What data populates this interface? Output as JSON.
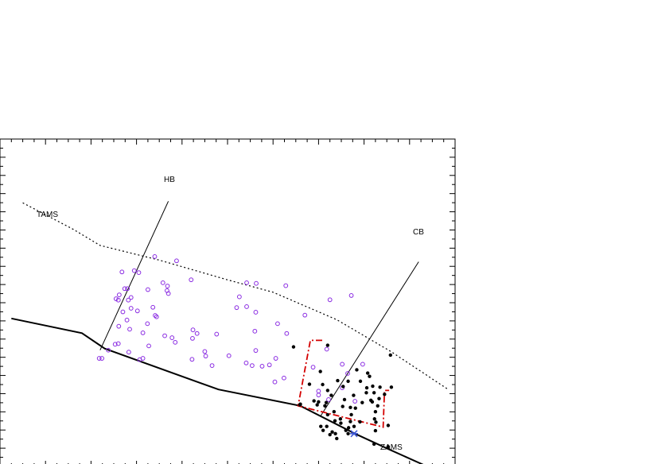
{
  "chart_data": {
    "type": "scatter",
    "title": "",
    "xlabel": "",
    "ylabel": "",
    "xlim": [
      0,
      10
    ],
    "ylim": [
      0,
      10
    ],
    "grid": false,
    "annotations": {
      "tams": "TAMS",
      "zams": "ZAMS",
      "hb": "HB",
      "cb": "CB"
    },
    "colors": {
      "open_points": "#8a2be2",
      "filled_points": "#000000",
      "box": "#d40000",
      "star": "#3b55d6",
      "lines": "#000000"
    },
    "series": [
      {
        "style": "open-circle",
        "points": [
          [
            3.4,
            6.41
          ],
          [
            3.88,
            6.28
          ],
          [
            2.68,
            5.94
          ],
          [
            2.95,
            5.98
          ],
          [
            3.05,
            5.92
          ],
          [
            3.58,
            5.61
          ],
          [
            3.68,
            5.51
          ],
          [
            4.2,
            5.7
          ],
          [
            3.7,
            5.28
          ],
          [
            2.55,
            5.12
          ],
          [
            2.62,
            5.24
          ],
          [
            2.74,
            5.43
          ],
          [
            2.8,
            5.43
          ],
          [
            2.88,
            5.16
          ],
          [
            3.25,
            5.4
          ],
          [
            3.67,
            5.37
          ],
          [
            5.26,
            5.18
          ],
          [
            5.42,
            5.61
          ],
          [
            5.42,
            4.88
          ],
          [
            5.63,
            5.59
          ],
          [
            6.28,
            5.52
          ],
          [
            7.25,
            5.09
          ],
          [
            7.72,
            5.22
          ],
          [
            2.6,
            5.08
          ],
          [
            2.82,
            5.08
          ],
          [
            2.88,
            4.83
          ],
          [
            3.02,
            4.75
          ],
          [
            3.36,
            4.86
          ],
          [
            3.41,
            4.61
          ],
          [
            3.44,
            4.57
          ],
          [
            2.7,
            4.72
          ],
          [
            2.79,
            4.47
          ],
          [
            5.2,
            4.85
          ],
          [
            5.62,
            4.71
          ],
          [
            6.1,
            4.36
          ],
          [
            6.7,
            4.62
          ],
          [
            2.61,
            4.28
          ],
          [
            2.85,
            4.19
          ],
          [
            3.24,
            4.36
          ],
          [
            3.14,
            4.08
          ],
          [
            3.62,
            3.99
          ],
          [
            3.78,
            3.93
          ],
          [
            4.24,
            4.17
          ],
          [
            4.33,
            4.06
          ],
          [
            4.23,
            3.91
          ],
          [
            4.76,
            4.04
          ],
          [
            5.6,
            4.13
          ],
          [
            6.3,
            4.06
          ],
          [
            2.38,
            3.55
          ],
          [
            2.53,
            3.73
          ],
          [
            2.6,
            3.75
          ],
          [
            2.18,
            3.3
          ],
          [
            2.24,
            3.3
          ],
          [
            2.83,
            3.49
          ],
          [
            3.27,
            3.68
          ],
          [
            3.07,
            3.26
          ],
          [
            3.14,
            3.3
          ],
          [
            3.85,
            3.79
          ],
          [
            4.5,
            3.51
          ],
          [
            4.22,
            3.27
          ],
          [
            4.52,
            3.37
          ],
          [
            4.66,
            3.08
          ],
          [
            5.03,
            3.38
          ],
          [
            5.62,
            3.54
          ],
          [
            5.41,
            3.16
          ],
          [
            5.54,
            3.08
          ],
          [
            5.76,
            3.06
          ],
          [
            5.92,
            3.1
          ],
          [
            6.06,
            3.3
          ],
          [
            6.04,
            2.58
          ],
          [
            6.24,
            2.7
          ],
          [
            6.88,
            3.03
          ],
          [
            7.18,
            3.58
          ],
          [
            7.64,
            2.84
          ],
          [
            7.52,
            3.12
          ],
          [
            7.97,
            3.12
          ],
          [
            7.0,
            2.3
          ],
          [
            7.22,
            2.04
          ],
          [
            7.52,
            2.4
          ],
          [
            7.8,
            1.99
          ],
          [
            7.0,
            2.18
          ]
        ]
      },
      {
        "style": "filled-circle",
        "points": [
          [
            6.45,
            3.65
          ],
          [
            7.2,
            3.7
          ],
          [
            8.58,
            3.4
          ],
          [
            7.04,
            2.9
          ],
          [
            7.84,
            2.95
          ],
          [
            7.92,
            2.6
          ],
          [
            8.08,
            2.85
          ],
          [
            8.12,
            2.75
          ],
          [
            7.65,
            2.6
          ],
          [
            8.06,
            2.4
          ],
          [
            8.19,
            2.45
          ],
          [
            8.05,
            2.25
          ],
          [
            8.22,
            2.25
          ],
          [
            6.8,
            2.51
          ],
          [
            7.09,
            2.5
          ],
          [
            7.2,
            2.32
          ],
          [
            7.42,
            2.62
          ],
          [
            7.54,
            2.44
          ],
          [
            7.28,
            2.17
          ],
          [
            7.57,
            2.04
          ],
          [
            7.77,
            2.17
          ],
          [
            8.15,
            2.02
          ],
          [
            8.33,
            2.07
          ],
          [
            8.35,
            2.42
          ],
          [
            8.6,
            2.42
          ],
          [
            8.45,
            2.2
          ],
          [
            6.9,
            2.0
          ],
          [
            7.0,
            1.97
          ],
          [
            6.97,
            1.88
          ],
          [
            7.17,
            1.95
          ],
          [
            7.53,
            1.83
          ],
          [
            7.7,
            1.8
          ],
          [
            7.81,
            1.78
          ],
          [
            7.96,
            1.95
          ],
          [
            8.18,
            1.97
          ],
          [
            7.48,
            1.45
          ],
          [
            7.7,
            1.37
          ],
          [
            8.25,
            1.67
          ],
          [
            7.14,
            1.85
          ],
          [
            8.3,
            1.85
          ],
          [
            8.23,
            1.45
          ],
          [
            8.26,
            1.35
          ],
          [
            8.53,
            1.25
          ],
          [
            8.25,
            1.09
          ],
          [
            6.6,
            1.9
          ],
          [
            6.59,
            1.88
          ],
          [
            7.2,
            1.58
          ],
          [
            7.34,
            1.67
          ],
          [
            7.72,
            1.58
          ],
          [
            7.36,
            1.39
          ],
          [
            7.49,
            1.32
          ],
          [
            7.18,
            1.22
          ],
          [
            7.05,
            1.22
          ],
          [
            7.1,
            1.1
          ],
          [
            7.3,
            1.05
          ],
          [
            7.6,
            1.1
          ],
          [
            7.78,
            1.22
          ],
          [
            7.91,
            1.36
          ],
          [
            7.66,
            1.18
          ],
          [
            7.25,
            0.97
          ],
          [
            7.37,
            1.0
          ],
          [
            7.65,
            1.0
          ],
          [
            7.4,
            0.85
          ],
          [
            8.22,
            0.68
          ],
          [
            8.53,
            0.6
          ]
        ]
      }
    ],
    "zams": [
      [
        0.25,
        4.52
      ],
      [
        1.8,
        4.07
      ],
      [
        2.3,
        3.6
      ],
      [
        4.8,
        2.35
      ],
      [
        6.6,
        1.85
      ],
      [
        7.8,
        1.0
      ],
      [
        8.5,
        0.55
      ],
      [
        9.3,
        0.05
      ]
    ],
    "tams": [
      [
        0.5,
        8.05
      ],
      [
        1.6,
        7.25
      ],
      [
        2.2,
        6.75
      ],
      [
        3.5,
        6.3
      ],
      [
        5.0,
        5.7
      ],
      [
        6.0,
        5.32
      ],
      [
        7.4,
        4.48
      ],
      [
        8.6,
        3.5
      ],
      [
        9.85,
        2.35
      ]
    ],
    "hb_line": [
      [
        2.2,
        3.55
      ],
      [
        3.7,
        8.1
      ]
    ],
    "cb_line": [
      [
        7.05,
        1.55
      ],
      [
        9.2,
        6.25
      ]
    ],
    "box": [
      [
        6.53,
        1.9
      ],
      [
        7.06,
        3.85
      ],
      [
        7.1,
        3.9
      ]
    ],
    "box_full": [
      [
        6.55,
        1.85
      ],
      [
        6.75,
        3.85
      ],
      [
        7.05,
        3.85
      ],
      [
        6.55,
        1.85
      ],
      [
        8.5,
        1.2
      ],
      [
        8.4,
        2.25
      ],
      [
        8.5,
        2.1
      ]
    ],
    "star": [
      7.78,
      1.0
    ]
  }
}
